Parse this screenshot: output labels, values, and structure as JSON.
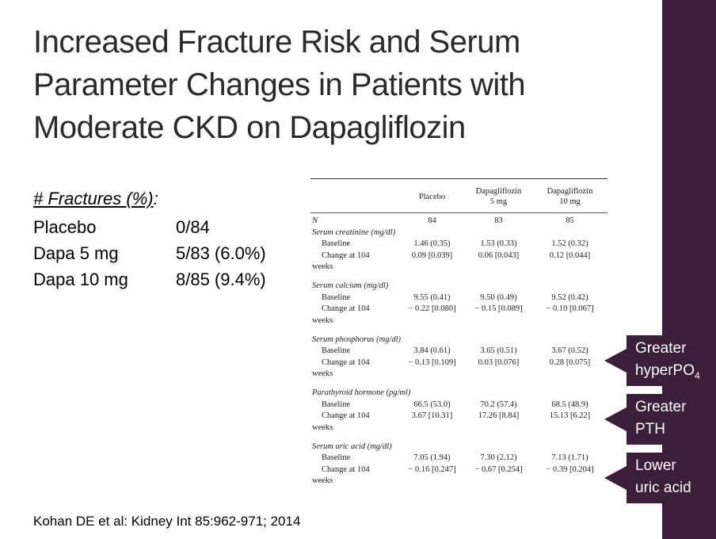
{
  "title": "Increased Fracture Risk and Serum Parameter Changes in Patients with Moderate CKD on Dapagliflozin",
  "fractures": {
    "heading": "# Fractures (%)",
    "heading_suffix": ":",
    "rows": [
      {
        "arm": "Placebo",
        "value": "0/84"
      },
      {
        "arm": "Dapa 5 mg",
        "value": "5/83 (6.0%)"
      },
      {
        "arm": "Dapa 10 mg",
        "value": "8/85 (9.4%)"
      }
    ]
  },
  "table": {
    "headers": [
      {
        "line1": "",
        "line2": "Placebo"
      },
      {
        "line1": "Dapagliflozin",
        "line2": "5 mg"
      },
      {
        "line1": "Dapagliflozin",
        "line2": "10 mg"
      }
    ],
    "n_row": {
      "label": "N",
      "values": [
        "84",
        "83",
        "85"
      ]
    },
    "sections": [
      {
        "name": "Serum creatinine (mg/dl)",
        "baseline": [
          "1.46 (0.35)",
          "1.53 (0.33)",
          "1.52 (0.32)"
        ],
        "change": [
          "0.09 [0.039]",
          "0.06 [0.043]",
          "0.12 [0.044]"
        ]
      },
      {
        "name": "Serum calcium (mg/dl)",
        "baseline": [
          "9.55 (0.41)",
          "9.50 (0.49)",
          "9.52 (0.42)"
        ],
        "change": [
          "− 0.22 [0.080]",
          "− 0.15 [0.089]",
          "− 0.10 [0.067]"
        ]
      },
      {
        "name": "Serum phosphorus (mg/dl)",
        "baseline": [
          "3.84 (0.61)",
          "3.65 (0.51)",
          "3.67 (0.52)"
        ],
        "change": [
          "− 0.13 [0.109]",
          "0.03 [0.076]",
          "0.28 [0.075]"
        ]
      },
      {
        "name": "Parathyroid hormone (pg/ml)",
        "baseline": [
          "66.5 (53.0)",
          "70.2 (57.4)",
          "68.5 (48.9)"
        ],
        "change": [
          "3.67 [10.31]",
          "17.26 [8.84]",
          "15.13 [6.22]"
        ]
      },
      {
        "name": "Serum uric acid (mg/dl)",
        "baseline": [
          "7.05 (1.94)",
          "7.30 (2.12)",
          "7.13 (1.71)"
        ],
        "change": [
          "− 0.16 [0.247]",
          "− 0.67 [0.254]",
          "− 0.39 [0.204]"
        ]
      }
    ],
    "baseline_label": "Baseline",
    "change_label": "Change at 104",
    "change_label_cont": "weeks"
  },
  "callouts": [
    {
      "line1": "Greater",
      "line2": "hyperPO",
      "sub": "4"
    },
    {
      "line1": "Greater",
      "line2": "PTH",
      "sub": ""
    },
    {
      "line1": "Lower",
      "line2": "uric acid",
      "sub": ""
    }
  ],
  "citation": "Kohan DE et al: Kidney Int 85:962-971; 2014",
  "colors": {
    "accent": "#3b1f3a",
    "title": "#2a2a2a"
  }
}
